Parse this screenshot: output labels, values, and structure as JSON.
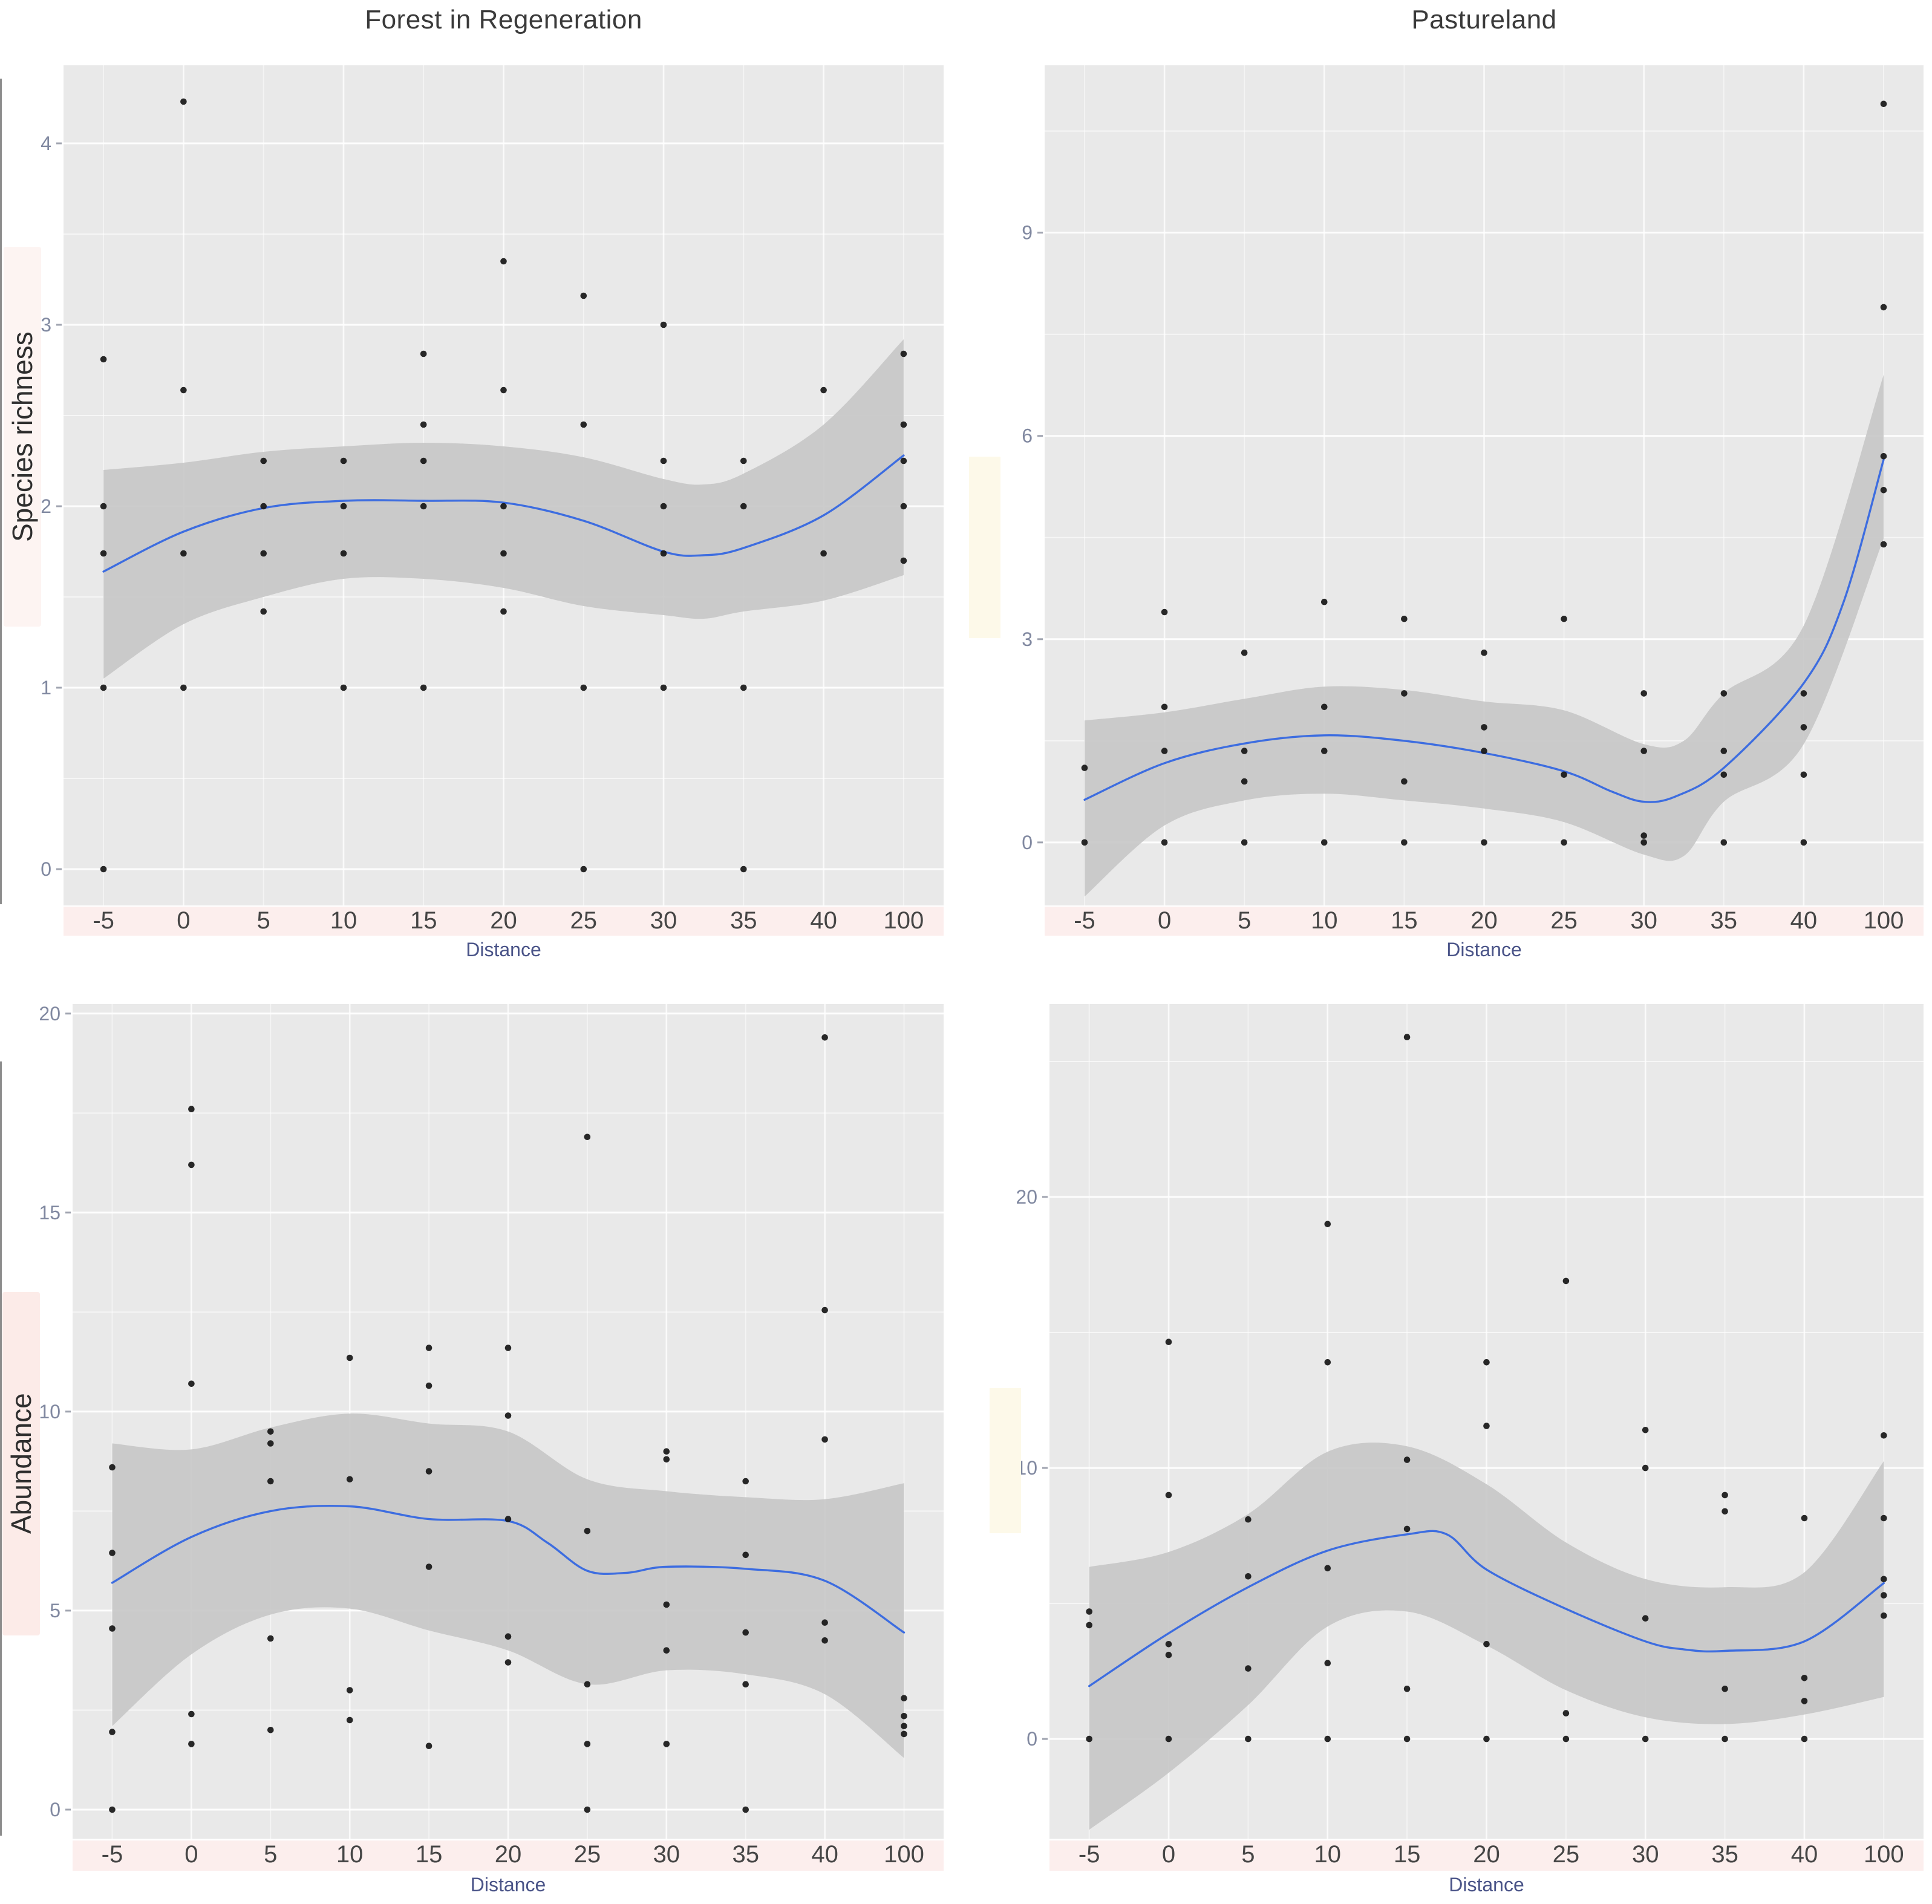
{
  "figure": {
    "columns": [
      "Forest in Regeneration",
      "Pastureland"
    ],
    "row_labels": [
      "Species richness",
      "Abundance"
    ],
    "x_axis": {
      "label": "Distance",
      "categories": [
        "-5",
        "0",
        "5",
        "10",
        "15",
        "20",
        "25",
        "30",
        "35",
        "40",
        "100"
      ]
    },
    "colors": {
      "panel_bg": "#e9e9e9",
      "grid": "#ffffff",
      "band": "#c6c6c6",
      "smooth_line": "#3d6de0",
      "point": "#161616",
      "strip_bg": "#fceeed",
      "x_tick_text": "#454545",
      "y_tick_text": "#8088a0",
      "axis_title_text": "#4a5488",
      "title_text": "#3a3a3a"
    }
  },
  "chart_data": [
    {
      "id": "forest-species-richness",
      "type": "scatter",
      "column_title": "Forest in Regeneration",
      "y_axis_label": "Species richness",
      "x_label": "Distance",
      "grid": true,
      "legend": "none",
      "x_categories": [
        "-5",
        "0",
        "5",
        "10",
        "15",
        "20",
        "25",
        "30",
        "35",
        "40",
        "100"
      ],
      "ylim": [
        -0.2,
        4.43
      ],
      "yticks": [
        0,
        1,
        2,
        3,
        4
      ],
      "points": [
        [
          "-5",
          2.81
        ],
        [
          "-5",
          2.0
        ],
        [
          "-5",
          1.74
        ],
        [
          "-5",
          1.0
        ],
        [
          "-5",
          0.0
        ],
        [
          "0",
          4.23
        ],
        [
          "0",
          2.64
        ],
        [
          "0",
          1.74
        ],
        [
          "0",
          1.0
        ],
        [
          "5",
          2.25
        ],
        [
          "5",
          2.0
        ],
        [
          "5",
          1.74
        ],
        [
          "5",
          1.42
        ],
        [
          "10",
          2.25
        ],
        [
          "10",
          2.0
        ],
        [
          "10",
          1.74
        ],
        [
          "10",
          1.0
        ],
        [
          "15",
          2.84
        ],
        [
          "15",
          2.45
        ],
        [
          "15",
          2.25
        ],
        [
          "15",
          2.0
        ],
        [
          "15",
          1.0
        ],
        [
          "20",
          3.35
        ],
        [
          "20",
          2.64
        ],
        [
          "20",
          2.0
        ],
        [
          "20",
          1.74
        ],
        [
          "20",
          1.42
        ],
        [
          "25",
          3.16
        ],
        [
          "25",
          2.45
        ],
        [
          "25",
          1.0
        ],
        [
          "25",
          0.0
        ],
        [
          "30",
          3.0
        ],
        [
          "30",
          2.25
        ],
        [
          "30",
          2.0
        ],
        [
          "30",
          1.74
        ],
        [
          "30",
          1.0
        ],
        [
          "35",
          2.25
        ],
        [
          "35",
          2.0
        ],
        [
          "35",
          1.0
        ],
        [
          "35",
          0.0
        ],
        [
          "40",
          2.64
        ],
        [
          "40",
          1.74
        ],
        [
          "100",
          2.84
        ],
        [
          "100",
          2.45
        ],
        [
          "100",
          2.25
        ],
        [
          "100",
          2.0
        ],
        [
          "100",
          1.7
        ]
      ],
      "smooth": [
        [
          0,
          1.64
        ],
        [
          1,
          1.86
        ],
        [
          2,
          1.99
        ],
        [
          3,
          2.03
        ],
        [
          4,
          2.03
        ],
        [
          5,
          2.02
        ],
        [
          6,
          1.92
        ],
        [
          7,
          1.75
        ],
        [
          7.5,
          1.73
        ],
        [
          8,
          1.77
        ],
        [
          9,
          1.95
        ],
        [
          10,
          2.28
        ]
      ],
      "band": [
        [
          0,
          1.05,
          2.2
        ],
        [
          1,
          1.35,
          2.24
        ],
        [
          2,
          1.5,
          2.3
        ],
        [
          3,
          1.6,
          2.33
        ],
        [
          4,
          1.6,
          2.35
        ],
        [
          5,
          1.55,
          2.33
        ],
        [
          6,
          1.45,
          2.27
        ],
        [
          7,
          1.4,
          2.15
        ],
        [
          7.5,
          1.38,
          2.12
        ],
        [
          8,
          1.42,
          2.18
        ],
        [
          9,
          1.48,
          2.45
        ],
        [
          10,
          1.62,
          2.92
        ]
      ]
    },
    {
      "id": "pasture-species-richness",
      "type": "scatter",
      "column_title": "Pastureland",
      "y_axis_label": "Species richness",
      "x_label": "Distance",
      "grid": true,
      "legend": "none",
      "x_categories": [
        "-5",
        "0",
        "5",
        "10",
        "15",
        "20",
        "25",
        "30",
        "35",
        "40",
        "100"
      ],
      "ylim": [
        -0.93,
        11.47
      ],
      "yticks": [
        0,
        3,
        6,
        9
      ],
      "points": [
        [
          "-5",
          1.1
        ],
        [
          "-5",
          0.0
        ],
        [
          "0",
          3.4
        ],
        [
          "0",
          2.0
        ],
        [
          "0",
          1.35
        ],
        [
          "0",
          0.0
        ],
        [
          "5",
          2.8
        ],
        [
          "5",
          1.35
        ],
        [
          "5",
          0.9
        ],
        [
          "5",
          0.0
        ],
        [
          "10",
          3.55
        ],
        [
          "10",
          2.0
        ],
        [
          "10",
          1.35
        ],
        [
          "10",
          0.0
        ],
        [
          "15",
          3.3
        ],
        [
          "15",
          2.2
        ],
        [
          "15",
          0.9
        ],
        [
          "15",
          0.0
        ],
        [
          "20",
          2.8
        ],
        [
          "20",
          1.7
        ],
        [
          "20",
          1.35
        ],
        [
          "20",
          0.0
        ],
        [
          "25",
          3.3
        ],
        [
          "25",
          1.0
        ],
        [
          "25",
          0.0
        ],
        [
          "30",
          2.2
        ],
        [
          "30",
          1.35
        ],
        [
          "30",
          0.1
        ],
        [
          "30",
          0.0
        ],
        [
          "35",
          2.2
        ],
        [
          "35",
          1.35
        ],
        [
          "35",
          1.0
        ],
        [
          "35",
          0.0
        ],
        [
          "40",
          2.2
        ],
        [
          "40",
          1.7
        ],
        [
          "40",
          1.0
        ],
        [
          "40",
          0.0
        ],
        [
          "100",
          10.9
        ],
        [
          "100",
          7.9
        ],
        [
          "100",
          5.7
        ],
        [
          "100",
          5.2
        ],
        [
          "100",
          4.4
        ]
      ],
      "smooth": [
        [
          0,
          0.63
        ],
        [
          1,
          1.17
        ],
        [
          2,
          1.46
        ],
        [
          3,
          1.58
        ],
        [
          4,
          1.5
        ],
        [
          5,
          1.32
        ],
        [
          6,
          1.05
        ],
        [
          6.6,
          0.75
        ],
        [
          7,
          0.6
        ],
        [
          7.4,
          0.68
        ],
        [
          8,
          1.1
        ],
        [
          9,
          2.35
        ],
        [
          9.5,
          3.55
        ],
        [
          10,
          5.65
        ]
      ],
      "band": [
        [
          0,
          -0.8,
          1.8
        ],
        [
          1,
          0.25,
          1.92
        ],
        [
          2,
          0.62,
          2.12
        ],
        [
          3,
          0.72,
          2.3
        ],
        [
          4,
          0.62,
          2.25
        ],
        [
          5,
          0.5,
          2.08
        ],
        [
          6,
          0.3,
          1.95
        ],
        [
          7,
          -0.18,
          1.45
        ],
        [
          7.5,
          -0.2,
          1.5
        ],
        [
          8,
          0.6,
          2.2
        ],
        [
          9,
          1.45,
          3.2
        ],
        [
          10,
          4.48,
          6.9
        ]
      ]
    },
    {
      "id": "forest-abundance",
      "type": "scatter",
      "column_title": "Forest in Regeneration",
      "y_axis_label": "Abundance",
      "x_label": "Distance",
      "grid": true,
      "legend": "none",
      "x_categories": [
        "-5",
        "0",
        "5",
        "10",
        "15",
        "20",
        "25",
        "30",
        "35",
        "40",
        "100"
      ],
      "ylim": [
        -0.73,
        20.24
      ],
      "yticks": [
        0,
        5,
        10,
        15,
        20
      ],
      "points": [
        [
          "-5",
          8.6
        ],
        [
          "-5",
          6.45
        ],
        [
          "-5",
          4.55
        ],
        [
          "-5",
          1.95
        ],
        [
          "-5",
          0.0
        ],
        [
          "0",
          17.6
        ],
        [
          "0",
          16.2
        ],
        [
          "0",
          10.7
        ],
        [
          "0",
          2.4
        ],
        [
          "0",
          1.65
        ],
        [
          "5",
          9.5
        ],
        [
          "5",
          9.2
        ],
        [
          "5",
          8.25
        ],
        [
          "5",
          4.3
        ],
        [
          "5",
          2.0
        ],
        [
          "10",
          11.35
        ],
        [
          "10",
          8.3
        ],
        [
          "10",
          3.0
        ],
        [
          "10",
          2.25
        ],
        [
          "15",
          11.6
        ],
        [
          "15",
          10.65
        ],
        [
          "15",
          8.5
        ],
        [
          "15",
          6.1
        ],
        [
          "15",
          1.6
        ],
        [
          "20",
          11.6
        ],
        [
          "20",
          9.9
        ],
        [
          "20",
          7.3
        ],
        [
          "20",
          4.35
        ],
        [
          "20",
          3.7
        ],
        [
          "25",
          16.9
        ],
        [
          "25",
          7.0
        ],
        [
          "25",
          3.15
        ],
        [
          "25",
          1.65
        ],
        [
          "25",
          0.0
        ],
        [
          "30",
          9.0
        ],
        [
          "30",
          8.8
        ],
        [
          "30",
          5.15
        ],
        [
          "30",
          4.0
        ],
        [
          "30",
          1.65
        ],
        [
          "35",
          8.25
        ],
        [
          "35",
          6.4
        ],
        [
          "35",
          4.45
        ],
        [
          "35",
          3.15
        ],
        [
          "35",
          0.0
        ],
        [
          "40",
          19.4
        ],
        [
          "40",
          12.55
        ],
        [
          "40",
          9.3
        ],
        [
          "40",
          4.7
        ],
        [
          "40",
          4.25
        ],
        [
          "100",
          2.8
        ],
        [
          "100",
          2.35
        ],
        [
          "100",
          2.1
        ],
        [
          "100",
          1.9
        ]
      ],
      "smooth": [
        [
          0,
          5.7
        ],
        [
          1,
          6.85
        ],
        [
          2,
          7.5
        ],
        [
          3,
          7.62
        ],
        [
          4,
          7.3
        ],
        [
          5,
          7.25
        ],
        [
          5.5,
          6.7
        ],
        [
          6,
          6.0
        ],
        [
          6.5,
          5.95
        ],
        [
          7,
          6.1
        ],
        [
          8,
          6.05
        ],
        [
          9,
          5.75
        ],
        [
          10,
          4.45
        ]
      ],
      "band": [
        [
          0,
          2.1,
          9.2
        ],
        [
          1,
          3.9,
          9.05
        ],
        [
          2,
          4.9,
          9.6
        ],
        [
          3,
          5.05,
          9.95
        ],
        [
          4,
          4.5,
          9.7
        ],
        [
          5,
          4.0,
          9.5
        ],
        [
          6,
          3.15,
          8.3
        ],
        [
          7,
          3.5,
          8.0
        ],
        [
          8,
          3.4,
          7.85
        ],
        [
          9,
          2.9,
          7.8
        ],
        [
          10,
          1.3,
          8.2
        ]
      ]
    },
    {
      "id": "pasture-abundance",
      "type": "scatter",
      "column_title": "Pastureland",
      "y_axis_label": "Abundance",
      "x_label": "Distance",
      "grid": true,
      "legend": "none",
      "x_categories": [
        "-5",
        "0",
        "5",
        "10",
        "15",
        "20",
        "25",
        "30",
        "35",
        "40",
        "100"
      ],
      "ylim": [
        -3.68,
        27.12
      ],
      "yticks": [
        0,
        10,
        20
      ],
      "points": [
        [
          "-5",
          4.7
        ],
        [
          "-5",
          4.2
        ],
        [
          "-5",
          0.0
        ],
        [
          "0",
          14.65
        ],
        [
          "0",
          9.0
        ],
        [
          "0",
          3.5
        ],
        [
          "0",
          3.1
        ],
        [
          "0",
          0.0
        ],
        [
          "5",
          8.1
        ],
        [
          "5",
          6.0
        ],
        [
          "5",
          2.6
        ],
        [
          "5",
          0.0
        ],
        [
          "10",
          19.0
        ],
        [
          "10",
          13.9
        ],
        [
          "10",
          6.3
        ],
        [
          "10",
          2.8
        ],
        [
          "10",
          0.0
        ],
        [
          "15",
          25.9
        ],
        [
          "15",
          10.3
        ],
        [
          "15",
          7.75
        ],
        [
          "15",
          1.85
        ],
        [
          "15",
          0.0
        ],
        [
          "20",
          13.9
        ],
        [
          "20",
          11.55
        ],
        [
          "20",
          3.5
        ],
        [
          "20",
          0.0
        ],
        [
          "25",
          16.9
        ],
        [
          "25",
          0.95
        ],
        [
          "25",
          0.0
        ],
        [
          "30",
          11.4
        ],
        [
          "30",
          10.0
        ],
        [
          "30",
          4.45
        ],
        [
          "30",
          0.0
        ],
        [
          "35",
          9.0
        ],
        [
          "35",
          8.4
        ],
        [
          "35",
          1.85
        ],
        [
          "35",
          0.0
        ],
        [
          "40",
          8.15
        ],
        [
          "40",
          2.25
        ],
        [
          "40",
          1.4
        ],
        [
          "40",
          0.0
        ],
        [
          "100",
          11.2
        ],
        [
          "100",
          8.15
        ],
        [
          "100",
          5.9
        ],
        [
          "100",
          5.3
        ],
        [
          "100",
          4.55
        ]
      ],
      "smooth": [
        [
          0,
          1.95
        ],
        [
          1,
          3.9
        ],
        [
          2,
          5.6
        ],
        [
          3,
          6.95
        ],
        [
          4,
          7.55
        ],
        [
          4.5,
          7.55
        ],
        [
          5,
          6.25
        ],
        [
          6,
          4.8
        ],
        [
          7,
          3.6
        ],
        [
          7.5,
          3.3
        ],
        [
          8,
          3.25
        ],
        [
          9,
          3.6
        ],
        [
          10,
          5.75
        ]
      ],
      "band": [
        [
          0,
          -3.35,
          6.35
        ],
        [
          1,
          -1.25,
          6.9
        ],
        [
          2,
          1.25,
          8.3
        ],
        [
          3,
          4.15,
          10.6
        ],
        [
          4,
          4.7,
          10.8
        ],
        [
          5,
          3.45,
          9.4
        ],
        [
          6,
          1.8,
          7.25
        ],
        [
          7,
          0.8,
          5.9
        ],
        [
          8,
          0.55,
          5.6
        ],
        [
          9,
          0.9,
          6.15
        ],
        [
          10,
          1.55,
          10.25
        ]
      ]
    }
  ]
}
